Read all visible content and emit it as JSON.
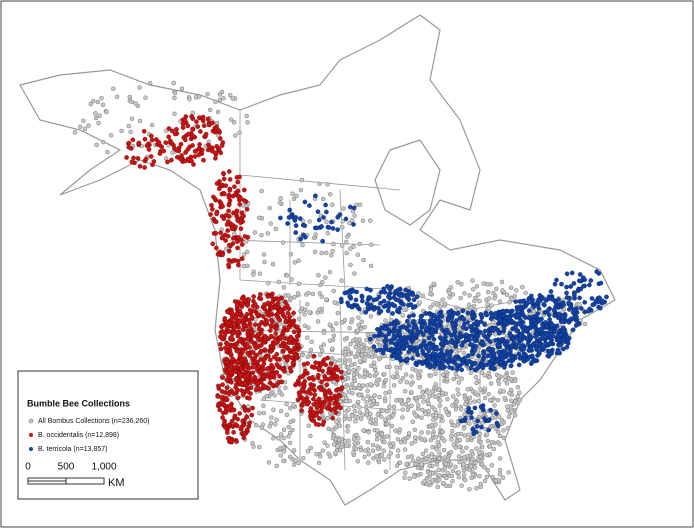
{
  "legend": {
    "title": "Bumble Bee Collections",
    "entries": [
      {
        "label": "All Bombus Collections (n=236,260)",
        "color": "#c8c8c8"
      },
      {
        "label": "B. occidentalis (n=12,898)",
        "color": "#cc1111"
      },
      {
        "label": "B. terricola (n=13,857)",
        "color": "#1144aa"
      }
    ]
  },
  "scale_bar": {
    "ticks": [
      "0",
      "500",
      "1,000"
    ],
    "unit": "KM"
  }
}
